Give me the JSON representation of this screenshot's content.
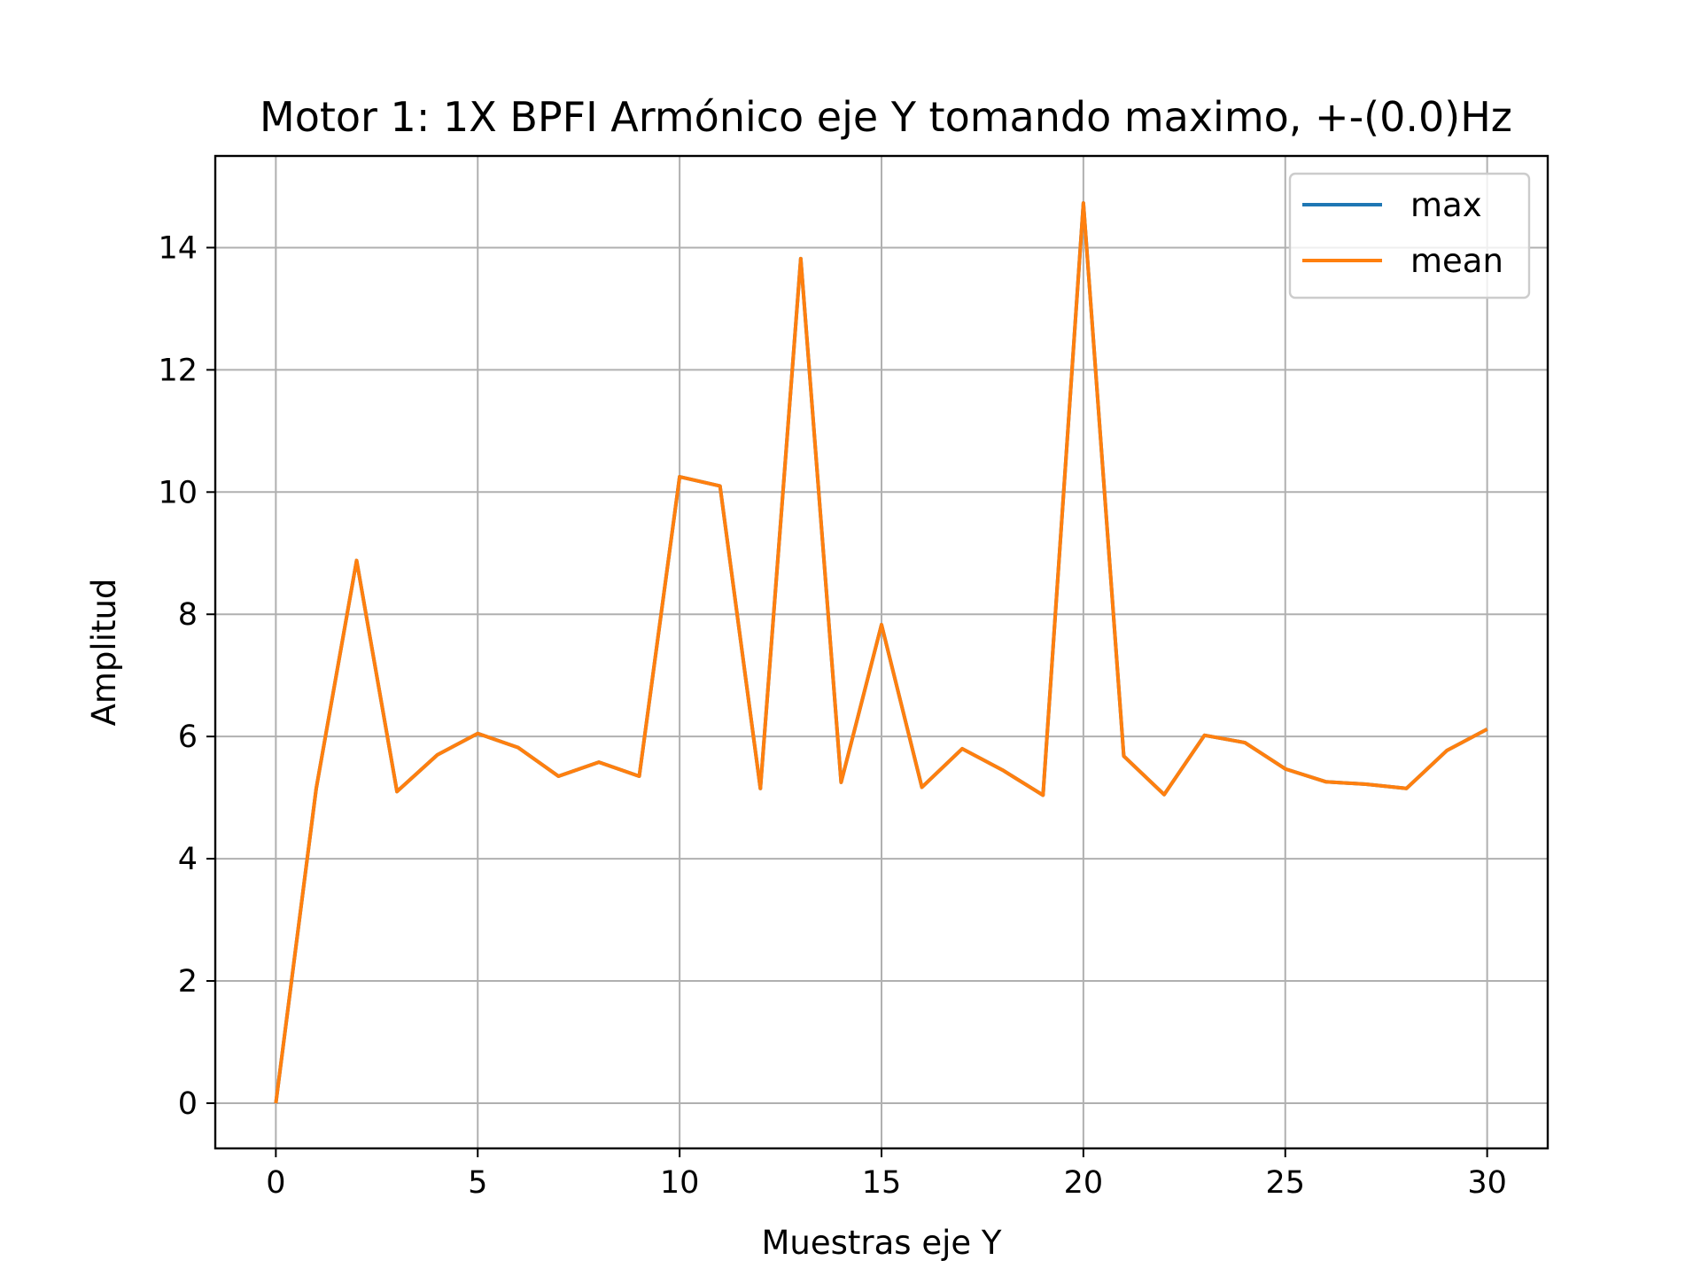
{
  "chart_data": {
    "type": "line",
    "title": "Motor 1: 1X BPFI Armónico eje Y tomando maximo, +-(0.0)Hz",
    "xlabel": "Muestras eje Y",
    "ylabel": "Amplitud",
    "xlim": [
      -1.5,
      31.5
    ],
    "ylim": [
      -0.74,
      15.5
    ],
    "xticks": [
      0,
      5,
      10,
      15,
      20,
      25,
      30
    ],
    "yticks": [
      0,
      2,
      4,
      6,
      8,
      10,
      12,
      14
    ],
    "grid": true,
    "legend_position": "top-right",
    "x": [
      0,
      1,
      2,
      3,
      4,
      5,
      6,
      7,
      8,
      9,
      10,
      11,
      12,
      13,
      14,
      15,
      16,
      17,
      18,
      19,
      20,
      21,
      22,
      23,
      24,
      25,
      26,
      27,
      28,
      29,
      30
    ],
    "series": [
      {
        "name": "max",
        "color": "#1f77b4",
        "values": [
          0,
          5.15,
          8.88,
          5.1,
          5.7,
          6.05,
          5.82,
          5.35,
          5.58,
          5.35,
          10.25,
          10.1,
          5.15,
          13.82,
          5.25,
          7.83,
          5.17,
          5.8,
          5.45,
          5.04,
          14.73,
          5.68,
          5.05,
          6.02,
          5.9,
          5.47,
          5.26,
          5.22,
          5.15,
          5.77,
          6.12
        ]
      },
      {
        "name": "mean",
        "color": "#ff7f0e",
        "values": [
          0,
          5.15,
          8.88,
          5.1,
          5.7,
          6.05,
          5.82,
          5.35,
          5.58,
          5.35,
          10.25,
          10.1,
          5.15,
          13.82,
          5.25,
          7.83,
          5.17,
          5.8,
          5.45,
          5.04,
          14.73,
          5.68,
          5.05,
          6.02,
          5.9,
          5.47,
          5.26,
          5.22,
          5.15,
          5.77,
          6.12
        ]
      }
    ]
  }
}
